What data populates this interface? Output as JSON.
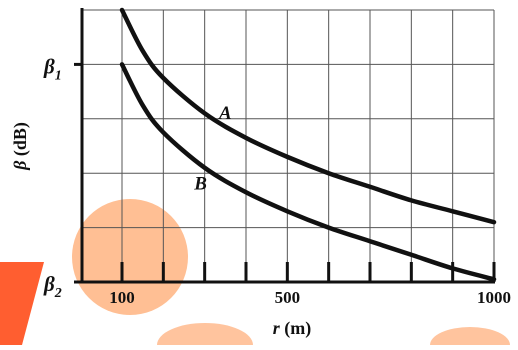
{
  "colors": {
    "background": "#ffffff",
    "grid": "#555555",
    "axis": "#111111",
    "curve": "#111111",
    "watermark": "#ff8a3d"
  },
  "chart_data": {
    "type": "line",
    "title": "",
    "xlabel": "r (m)",
    "ylabel": "β (dB)",
    "xlim": [
      100,
      1000
    ],
    "ylim": [
      0,
      100
    ],
    "x_tick_labels": [
      {
        "x": 100,
        "label": "100"
      },
      {
        "x": 500,
        "label": "500"
      },
      {
        "x": 1000,
        "label": "1000"
      }
    ],
    "x_tick_marks": [
      100,
      200,
      300,
      400,
      500,
      600,
      700,
      800,
      900,
      1000
    ],
    "y_tick_labels": [
      {
        "y": 80,
        "label": "β1",
        "base": "β",
        "sub": "1"
      },
      {
        "y": 0,
        "label": "β2",
        "base": "β",
        "sub": "2"
      }
    ],
    "grid": true,
    "grid_x": [
      200,
      300,
      400,
      500,
      600,
      700,
      800,
      900
    ],
    "grid_y": [
      20,
      40,
      60,
      80
    ],
    "series": [
      {
        "name": "A",
        "label_at": [
          350,
          60
        ],
        "points": [
          [
            100,
            100
          ],
          [
            150,
            85
          ],
          [
            200,
            75
          ],
          [
            300,
            62
          ],
          [
            400,
            53
          ],
          [
            500,
            46
          ],
          [
            600,
            40
          ],
          [
            700,
            35
          ],
          [
            800,
            30
          ],
          [
            900,
            26
          ],
          [
            1000,
            22
          ]
        ]
      },
      {
        "name": "B",
        "label_at": [
          290,
          34
        ],
        "points": [
          [
            100,
            80
          ],
          [
            150,
            65
          ],
          [
            200,
            55
          ],
          [
            300,
            42
          ],
          [
            400,
            33
          ],
          [
            500,
            26
          ],
          [
            600,
            20
          ],
          [
            700,
            15
          ],
          [
            800,
            10
          ],
          [
            900,
            5
          ],
          [
            1000,
            1
          ]
        ]
      }
    ]
  }
}
